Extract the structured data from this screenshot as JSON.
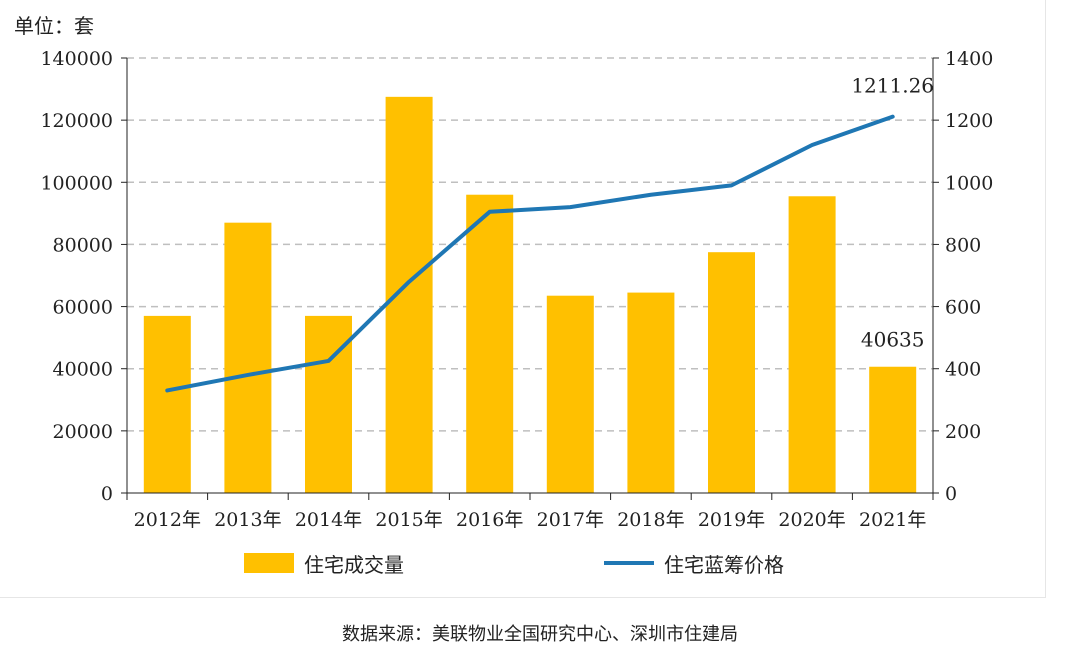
{
  "unit_label": "单位：套",
  "source_note": "数据来源：美联物业全国研究中心、深圳市住建局",
  "colors": {
    "bar": "#FFC000",
    "line": "#1F77B4",
    "grid": "#BFBFBF",
    "axis": "#222222"
  },
  "chart_data": {
    "type": "bar+line",
    "categories": [
      "2012年",
      "2013年",
      "2014年",
      "2015年",
      "2016年",
      "2017年",
      "2018年",
      "2019年",
      "2020年",
      "2021年"
    ],
    "series": [
      {
        "name": "住宅成交量",
        "type": "bar",
        "axis": "left",
        "values": [
          57000,
          87000,
          57000,
          127500,
          96000,
          63500,
          64500,
          77500,
          95500,
          40635
        ]
      },
      {
        "name": "住宅蓝筹价格",
        "type": "line",
        "axis": "right",
        "values": [
          330,
          380,
          425,
          680,
          905,
          920,
          960,
          990,
          1120,
          1211.26
        ]
      }
    ],
    "left_axis": {
      "min": 0,
      "max": 140000,
      "step": 20000,
      "ticks": [
        "0",
        "20000",
        "40000",
        "60000",
        "80000",
        "100000",
        "120000",
        "140000"
      ]
    },
    "right_axis": {
      "min": 0,
      "max": 1400,
      "step": 200,
      "ticks": [
        "0",
        "200",
        "400",
        "600",
        "800",
        "1000",
        "1200",
        "1400"
      ]
    },
    "annotations": [
      {
        "series": "住宅成交量",
        "category": "2021年",
        "text": "40635"
      },
      {
        "series": "住宅蓝筹价格",
        "category": "2021年",
        "text": "1211.26"
      }
    ],
    "grid": true,
    "legend_position": "bottom"
  }
}
